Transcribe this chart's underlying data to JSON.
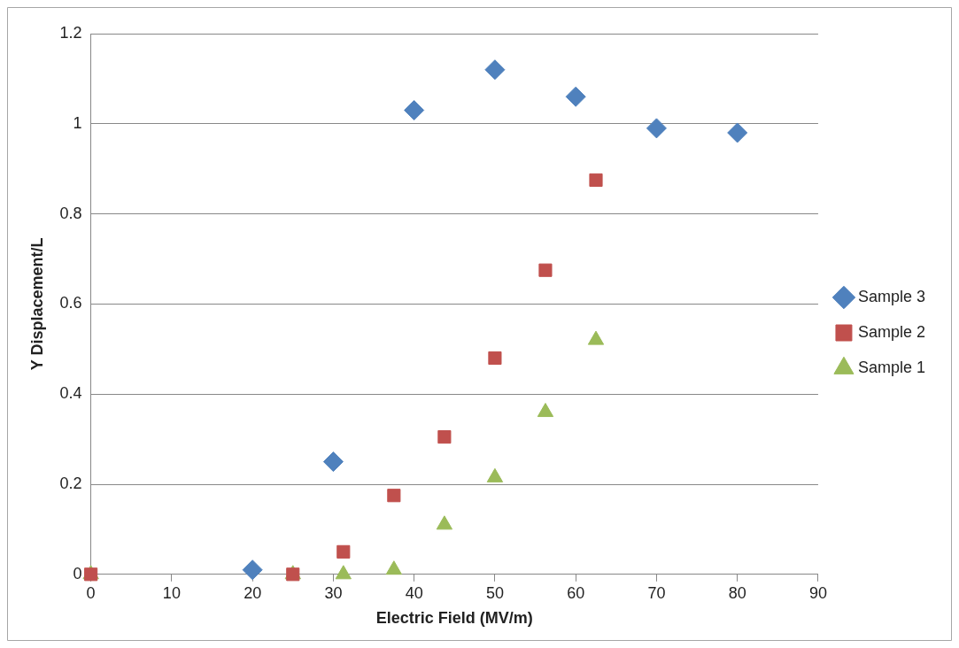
{
  "chart_data": {
    "type": "scatter",
    "xlabel": "Electric Field (MV/m)",
    "ylabel": "Y Displacement/L",
    "xlim": [
      0,
      90
    ],
    "xticks": [
      0,
      10,
      20,
      30,
      40,
      50,
      60,
      70,
      80,
      90
    ],
    "ylim": [
      0,
      1.2
    ],
    "yticks": [
      0,
      0.2,
      0.4,
      0.6,
      0.8,
      1,
      1.2
    ],
    "grid": "y",
    "legend": "right",
    "series": [
      {
        "name": "Sample 3",
        "color": "#4f81bd",
        "marker": "diamond",
        "x": [
          20,
          30,
          40,
          50,
          60,
          70,
          80
        ],
        "values": [
          0.01,
          0.25,
          1.03,
          1.12,
          1.06,
          0.99,
          0.98
        ]
      },
      {
        "name": "Sample 2",
        "color": "#c0504d",
        "marker": "square",
        "x": [
          0,
          25,
          31.25,
          37.5,
          43.75,
          50,
          56.25,
          62.5
        ],
        "values": [
          0,
          0,
          0.05,
          0.175,
          0.305,
          0.48,
          0.675,
          0.875
        ]
      },
      {
        "name": "Sample 1",
        "color": "#9bbb59",
        "marker": "triangle",
        "x": [
          0,
          25,
          31.25,
          37.5,
          43.75,
          50,
          56.25,
          62.5
        ],
        "values": [
          0,
          0,
          0,
          0.01,
          0.11,
          0.215,
          0.36,
          0.52
        ]
      }
    ]
  }
}
